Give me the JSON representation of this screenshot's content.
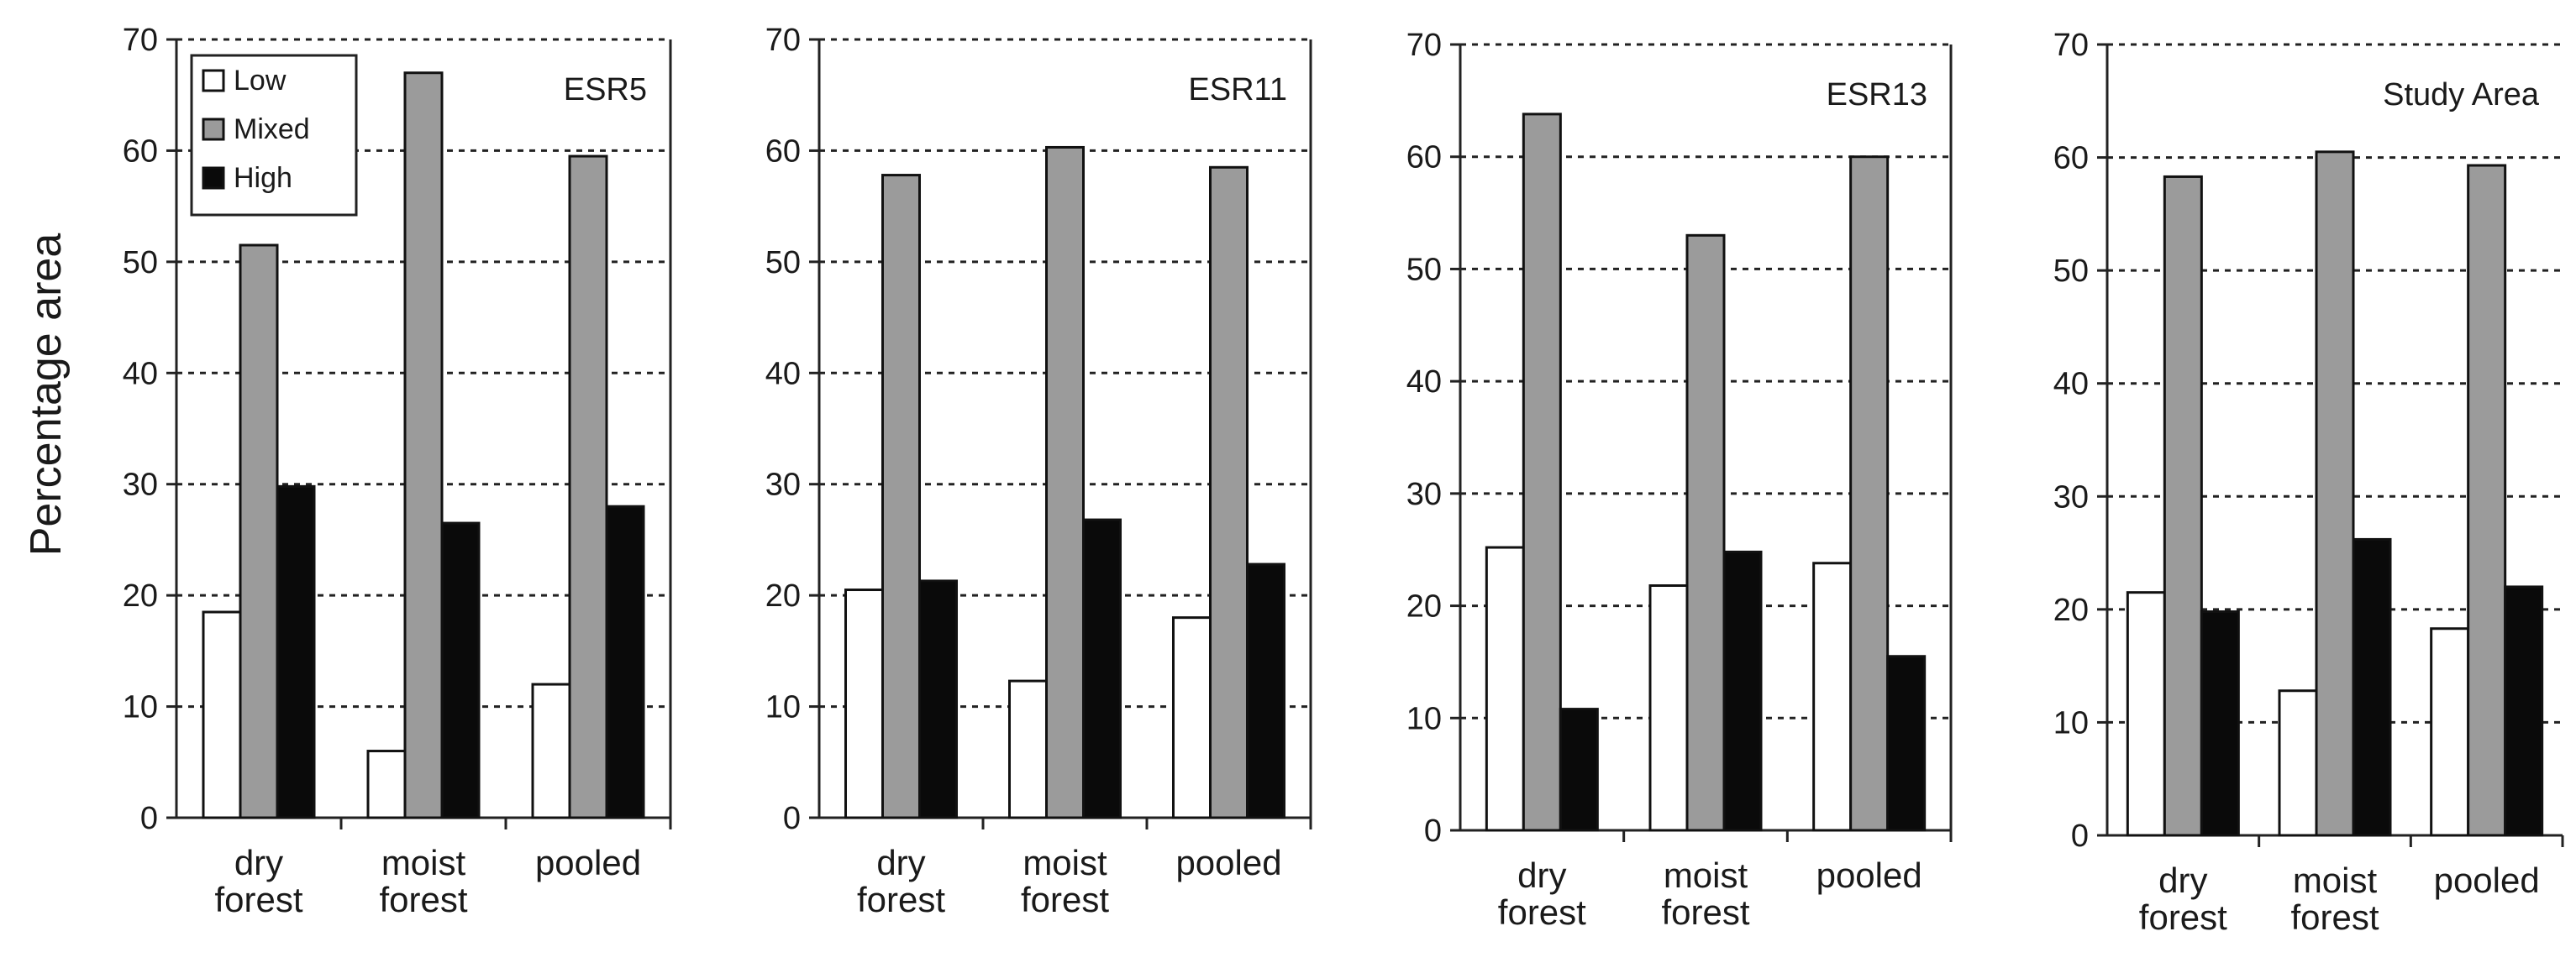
{
  "chart_data": {
    "type": "bar",
    "ylabel": "Percentage area",
    "ylim": [
      0,
      70
    ],
    "yticks": [
      "0",
      "10",
      "20",
      "30",
      "40",
      "50",
      "60",
      "70"
    ],
    "grid": "dotted horizontal",
    "categories": [
      {
        "line1": "dry",
        "line2": "forest"
      },
      {
        "line1": "moist",
        "line2": "forest"
      },
      {
        "line1": "pooled",
        "line2": ""
      }
    ],
    "legend": {
      "placement": "top-left of first panel",
      "entries": [
        {
          "name": "Low",
          "color": "#ffffff"
        },
        {
          "name": "Mixed",
          "color": "#9b9b9b"
        },
        {
          "name": "High",
          "color": "#0a0a0a"
        }
      ]
    },
    "panels": [
      {
        "title": "ESR5",
        "series": [
          {
            "name": "Low",
            "values": [
              18.5,
              6,
              12
            ]
          },
          {
            "name": "Mixed",
            "values": [
              51.5,
              67,
              59.5
            ]
          },
          {
            "name": "High",
            "values": [
              29.8,
              26.5,
              28
            ]
          }
        ]
      },
      {
        "title": "ESR11",
        "series": [
          {
            "name": "Low",
            "values": [
              20.5,
              12.3,
              18
            ]
          },
          {
            "name": "Mixed",
            "values": [
              57.8,
              60.3,
              58.5
            ]
          },
          {
            "name": "High",
            "values": [
              21.3,
              26.8,
              22.8
            ]
          }
        ]
      },
      {
        "title": "ESR13",
        "series": [
          {
            "name": "Low",
            "values": [
              25.2,
              21.8,
              23.8
            ]
          },
          {
            "name": "Mixed",
            "values": [
              63.8,
              53,
              60
            ]
          },
          {
            "name": "High",
            "values": [
              10.8,
              24.8,
              15.5
            ]
          }
        ]
      },
      {
        "title": "Study Area",
        "series": [
          {
            "name": "Low",
            "values": [
              21.5,
              12.8,
              18.3
            ]
          },
          {
            "name": "Mixed",
            "values": [
              58.3,
              60.5,
              59.3
            ]
          },
          {
            "name": "High",
            "values": [
              19.8,
              26.2,
              22
            ]
          }
        ]
      }
    ]
  }
}
